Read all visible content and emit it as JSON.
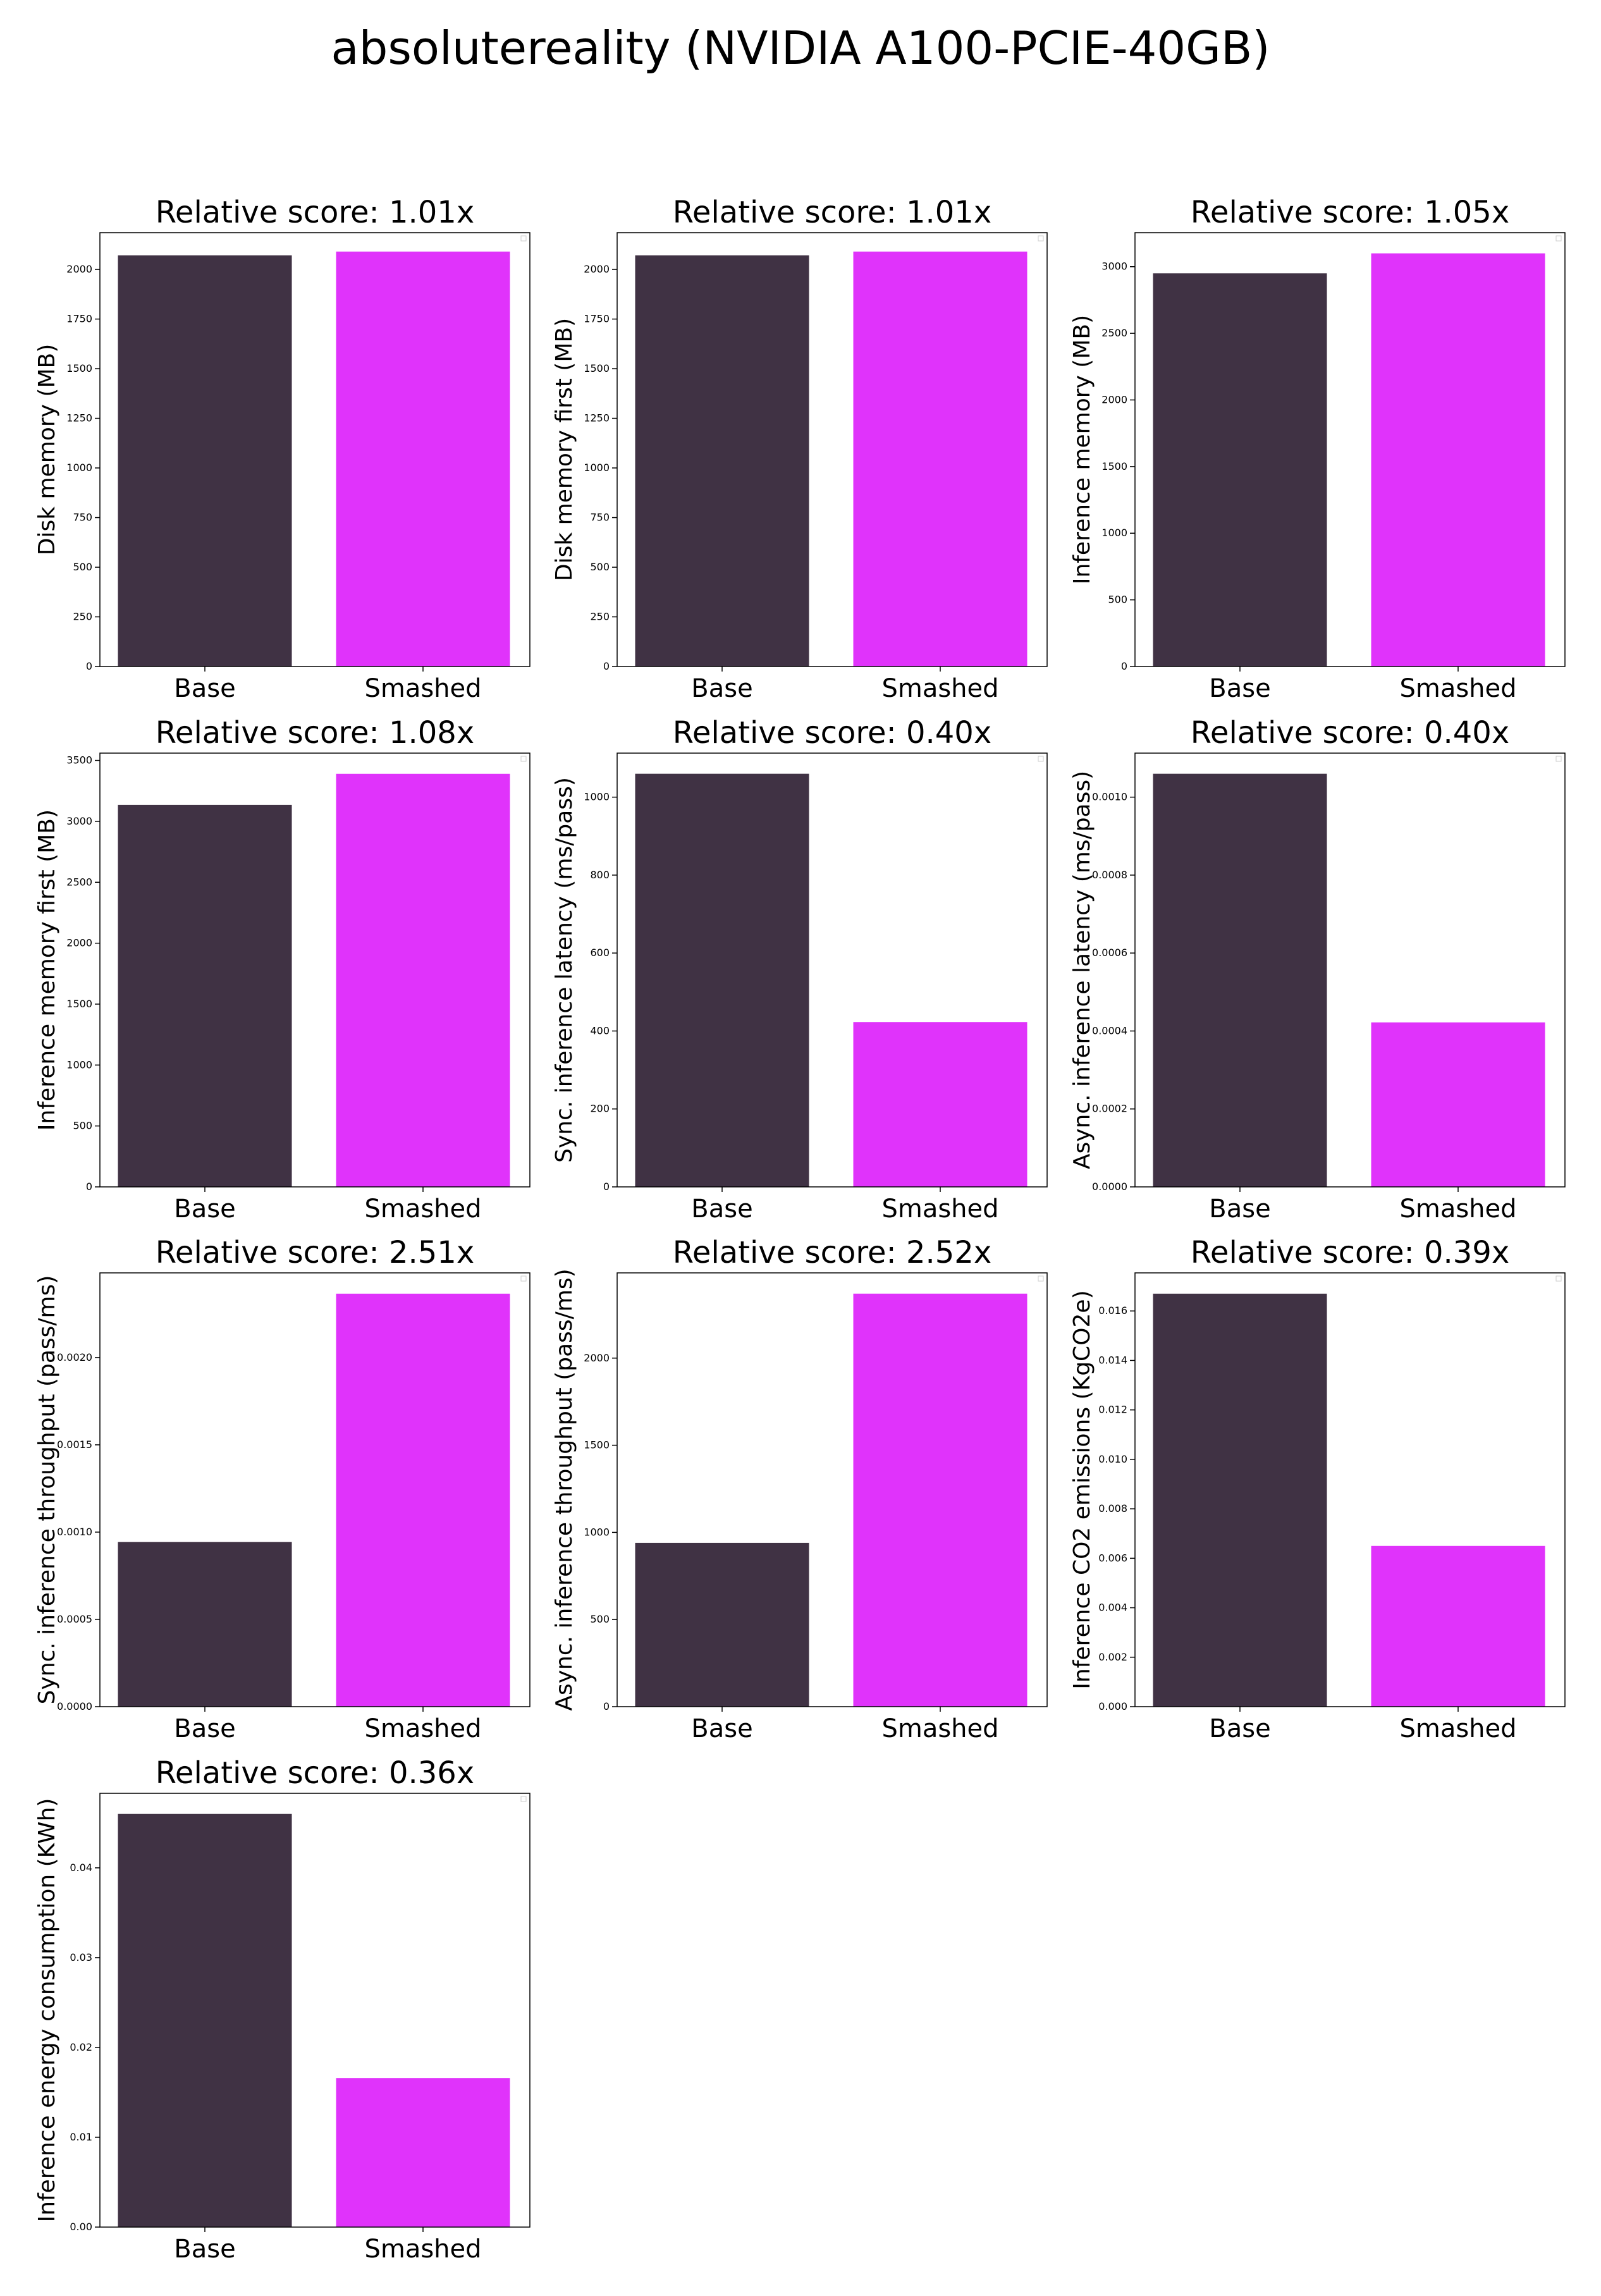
{
  "figure": {
    "title": "absolutereality (NVIDIA A100-PCIE-40GB)"
  },
  "colors": {
    "base": "#403244",
    "smashed": "#e033fb"
  },
  "chart_data": [
    {
      "type": "bar",
      "title": "Relative score: 1.01x",
      "ylabel": "Disk memory (MB)",
      "categories": [
        "Base",
        "Smashed"
      ],
      "values": [
        2071,
        2090
      ],
      "ylim": [
        0,
        2185
      ],
      "yticks": [
        0,
        250,
        500,
        750,
        1000,
        1250,
        1500,
        1750,
        2000
      ],
      "ytick_labels": [
        "0",
        "250",
        "500",
        "750",
        "1000",
        "1250",
        "1500",
        "1750",
        "2000"
      ]
    },
    {
      "type": "bar",
      "title": "Relative score: 1.01x",
      "ylabel": "Disk memory first (MB)",
      "categories": [
        "Base",
        "Smashed"
      ],
      "values": [
        2071,
        2090
      ],
      "ylim": [
        0,
        2185
      ],
      "yticks": [
        0,
        250,
        500,
        750,
        1000,
        1250,
        1500,
        1750,
        2000
      ],
      "ytick_labels": [
        "0",
        "250",
        "500",
        "750",
        "1000",
        "1250",
        "1500",
        "1750",
        "2000"
      ]
    },
    {
      "type": "bar",
      "title": "Relative score: 1.05x",
      "ylabel": "Inference memory (MB)",
      "categories": [
        "Base",
        "Smashed"
      ],
      "values": [
        2950,
        3100
      ],
      "ylim": [
        0,
        3255
      ],
      "yticks": [
        0,
        500,
        1000,
        1500,
        2000,
        2500,
        3000
      ],
      "ytick_labels": [
        "0",
        "500",
        "1000",
        "1500",
        "2000",
        "2500",
        "3000"
      ]
    },
    {
      "type": "bar",
      "title": "Relative score: 1.08x",
      "ylabel": "Inference memory first (MB)",
      "categories": [
        "Base",
        "Smashed"
      ],
      "values": [
        3135,
        3390
      ],
      "ylim": [
        0,
        3560
      ],
      "yticks": [
        0,
        500,
        1000,
        1500,
        2000,
        2500,
        3000,
        3500
      ],
      "ytick_labels": [
        "0",
        "500",
        "1000",
        "1500",
        "2000",
        "2500",
        "3000",
        "3500"
      ]
    },
    {
      "type": "bar",
      "title": "Relative score: 0.40x",
      "ylabel": "Sync. inference latency (ms/pass)",
      "categories": [
        "Base",
        "Smashed"
      ],
      "values": [
        1060,
        423
      ],
      "ylim": [
        0,
        1113
      ],
      "yticks": [
        0,
        200,
        400,
        600,
        800,
        1000
      ],
      "ytick_labels": [
        "0",
        "200",
        "400",
        "600",
        "800",
        "1000"
      ]
    },
    {
      "type": "bar",
      "title": "Relative score: 0.40x",
      "ylabel": "Async. inference latency (ms/pass)",
      "categories": [
        "Base",
        "Smashed"
      ],
      "values": [
        0.00106,
        0.000422
      ],
      "ylim": [
        0,
        0.001113
      ],
      "yticks": [
        0,
        0.0002,
        0.0004,
        0.0006,
        0.0008,
        0.001
      ],
      "ytick_labels": [
        "0.0000",
        "0.0002",
        "0.0004",
        "0.0006",
        "0.0008",
        "0.0010"
      ]
    },
    {
      "type": "bar",
      "title": "Relative score: 2.51x",
      "ylabel": "Sync. inference throughput (pass/ms)",
      "categories": [
        "Base",
        "Smashed"
      ],
      "values": [
        0.000943,
        0.002366
      ],
      "ylim": [
        0,
        0.002485
      ],
      "yticks": [
        0,
        0.0005,
        0.001,
        0.0015,
        0.002
      ],
      "ytick_labels": [
        "0.0000",
        "0.0005",
        "0.0010",
        "0.0015",
        "0.0020"
      ]
    },
    {
      "type": "bar",
      "title": "Relative score: 2.52x",
      "ylabel": "Async. inference throughput (pass/ms)",
      "categories": [
        "Base",
        "Smashed"
      ],
      "values": [
        940,
        2370
      ],
      "ylim": [
        0,
        2489
      ],
      "yticks": [
        0,
        500,
        1000,
        1500,
        2000
      ],
      "ytick_labels": [
        "0",
        "500",
        "1000",
        "1500",
        "2000"
      ]
    },
    {
      "type": "bar",
      "title": "Relative score: 0.39x",
      "ylabel": "Inference CO2 emissions (KgCO2e)",
      "categories": [
        "Base",
        "Smashed"
      ],
      "values": [
        0.0167,
        0.0065
      ],
      "ylim": [
        0,
        0.01754
      ],
      "yticks": [
        0,
        0.002,
        0.004,
        0.006,
        0.008,
        0.01,
        0.012,
        0.014,
        0.016
      ],
      "ytick_labels": [
        "0.000",
        "0.002",
        "0.004",
        "0.006",
        "0.008",
        "0.010",
        "0.012",
        "0.014",
        "0.016"
      ]
    },
    {
      "type": "bar",
      "title": "Relative score: 0.36x",
      "ylabel": "Inference energy consumption (KWh)",
      "categories": [
        "Base",
        "Smashed"
      ],
      "values": [
        0.046,
        0.0166
      ],
      "ylim": [
        0,
        0.0483
      ],
      "yticks": [
        0,
        0.01,
        0.02,
        0.03,
        0.04
      ],
      "ytick_labels": [
        "0.00",
        "0.01",
        "0.02",
        "0.03",
        "0.04"
      ]
    }
  ]
}
